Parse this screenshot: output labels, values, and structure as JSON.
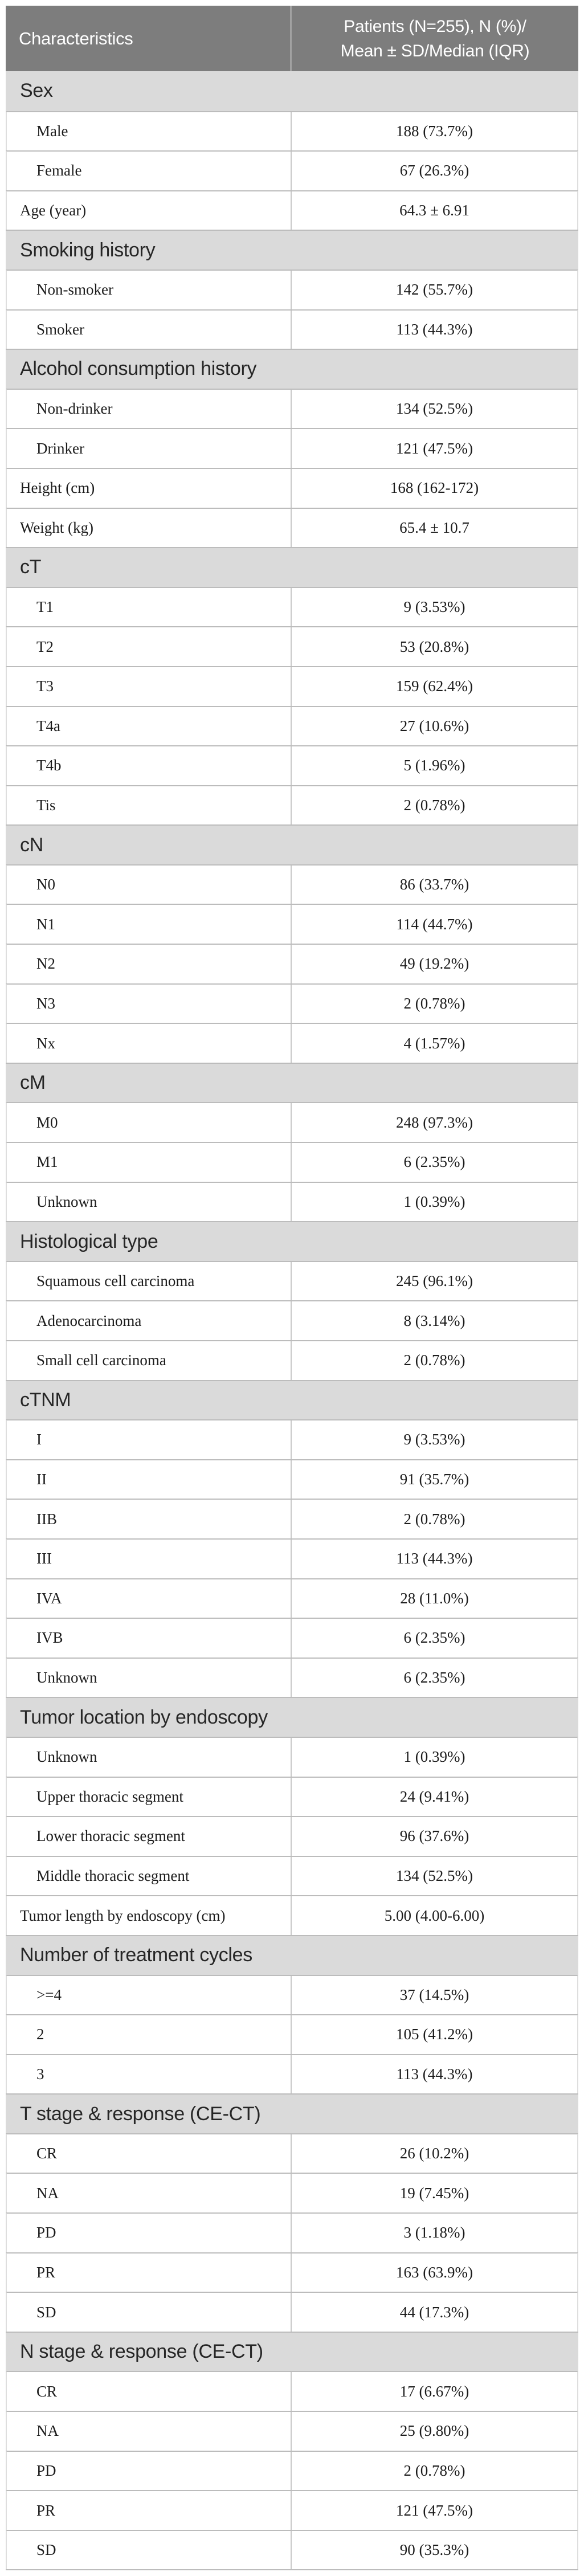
{
  "table": {
    "header": {
      "col1": "Characteristics",
      "col2_line1": "Patients (N=255), N (%)/",
      "col2_line2": "Mean ± SD/Median (IQR)"
    },
    "rows": [
      {
        "type": "section",
        "label": "Sex"
      },
      {
        "type": "item",
        "indent": 1,
        "label": "Male",
        "value": "188 (73.7%)"
      },
      {
        "type": "item",
        "indent": 1,
        "label": "Female",
        "value": "67 (26.3%)"
      },
      {
        "type": "item",
        "indent": 0,
        "label": "Age (year)",
        "value": "64.3 ± 6.91"
      },
      {
        "type": "section",
        "label": "Smoking history"
      },
      {
        "type": "item",
        "indent": 1,
        "label": "Non-smoker",
        "value": "142 (55.7%)"
      },
      {
        "type": "item",
        "indent": 1,
        "label": "Smoker",
        "value": "113 (44.3%)"
      },
      {
        "type": "section",
        "label": "Alcohol consumption history"
      },
      {
        "type": "item",
        "indent": 1,
        "label": "Non-drinker",
        "value": "134 (52.5%)"
      },
      {
        "type": "item",
        "indent": 1,
        "label": "Drinker",
        "value": "121 (47.5%)"
      },
      {
        "type": "item",
        "indent": 0,
        "label": "Height (cm)",
        "value": "168 (162-172)"
      },
      {
        "type": "item",
        "indent": 0,
        "label": "Weight (kg)",
        "value": "65.4 ± 10.7"
      },
      {
        "type": "section",
        "label": "cT"
      },
      {
        "type": "item",
        "indent": 1,
        "label": "T1",
        "value": "9 (3.53%)"
      },
      {
        "type": "item",
        "indent": 1,
        "label": "T2",
        "value": "53 (20.8%)"
      },
      {
        "type": "item",
        "indent": 1,
        "label": "T3",
        "value": "159 (62.4%)"
      },
      {
        "type": "item",
        "indent": 1,
        "label": "T4a",
        "value": "27 (10.6%)"
      },
      {
        "type": "item",
        "indent": 1,
        "label": "T4b",
        "value": "5 (1.96%)"
      },
      {
        "type": "item",
        "indent": 1,
        "label": "Tis",
        "value": "2 (0.78%)"
      },
      {
        "type": "section",
        "label": "cN"
      },
      {
        "type": "item",
        "indent": 1,
        "label": "N0",
        "value": "86 (33.7%)"
      },
      {
        "type": "item",
        "indent": 1,
        "label": "N1",
        "value": "114 (44.7%)"
      },
      {
        "type": "item",
        "indent": 1,
        "label": "N2",
        "value": "49 (19.2%)"
      },
      {
        "type": "item",
        "indent": 1,
        "label": "N3",
        "value": "2 (0.78%)"
      },
      {
        "type": "item",
        "indent": 1,
        "label": "Nx",
        "value": "4 (1.57%)"
      },
      {
        "type": "section",
        "label": "cM"
      },
      {
        "type": "item",
        "indent": 1,
        "label": "M0",
        "value": "248 (97.3%)"
      },
      {
        "type": "item",
        "indent": 1,
        "label": "M1",
        "value": "6 (2.35%)"
      },
      {
        "type": "item",
        "indent": 1,
        "label": "Unknown",
        "value": "1 (0.39%)"
      },
      {
        "type": "section",
        "label": "Histological type"
      },
      {
        "type": "item",
        "indent": 1,
        "label": "Squamous cell carcinoma",
        "value": "245 (96.1%)"
      },
      {
        "type": "item",
        "indent": 1,
        "label": "Adenocarcinoma",
        "value": "8 (3.14%)"
      },
      {
        "type": "item",
        "indent": 1,
        "label": "Small cell carcinoma",
        "value": "2 (0.78%)"
      },
      {
        "type": "section",
        "label": "cTNM"
      },
      {
        "type": "item",
        "indent": 1,
        "label": "I",
        "value": "9 (3.53%)"
      },
      {
        "type": "item",
        "indent": 1,
        "label": "II",
        "value": "91 (35.7%)"
      },
      {
        "type": "item",
        "indent": 1,
        "label": "IIB",
        "value": "2 (0.78%)"
      },
      {
        "type": "item",
        "indent": 1,
        "label": "III",
        "value": "113 (44.3%)"
      },
      {
        "type": "item",
        "indent": 1,
        "label": "IVA",
        "value": "28 (11.0%)"
      },
      {
        "type": "item",
        "indent": 1,
        "label": "IVB",
        "value": "6 (2.35%)"
      },
      {
        "type": "item",
        "indent": 1,
        "label": "Unknown",
        "value": "6 (2.35%)"
      },
      {
        "type": "section",
        "label": "Tumor location by endoscopy"
      },
      {
        "type": "item",
        "indent": 1,
        "label": "Unknown",
        "value": "1 (0.39%)"
      },
      {
        "type": "item",
        "indent": 1,
        "label": "Upper thoracic segment",
        "value": "24 (9.41%)"
      },
      {
        "type": "item",
        "indent": 1,
        "label": "Lower thoracic segment",
        "value": "96 (37.6%)"
      },
      {
        "type": "item",
        "indent": 1,
        "label": "Middle thoracic segment",
        "value": "134 (52.5%)"
      },
      {
        "type": "item",
        "indent": 0,
        "label": "Tumor length by endoscopy (cm)",
        "value": "5.00 (4.00-6.00)"
      },
      {
        "type": "section",
        "label": "Number of treatment cycles"
      },
      {
        "type": "item",
        "indent": 1,
        "label": ">=4",
        "value": "37 (14.5%)"
      },
      {
        "type": "item",
        "indent": 1,
        "label": "2",
        "value": "105 (41.2%)"
      },
      {
        "type": "item",
        "indent": 1,
        "label": "3",
        "value": "113 (44.3%)"
      },
      {
        "type": "section",
        "label": "T stage & response (CE-CT)"
      },
      {
        "type": "item",
        "indent": 1,
        "label": "CR",
        "value": "26 (10.2%)"
      },
      {
        "type": "item",
        "indent": 1,
        "label": "NA",
        "value": "19 (7.45%)"
      },
      {
        "type": "item",
        "indent": 1,
        "label": "PD",
        "value": "3 (1.18%)"
      },
      {
        "type": "item",
        "indent": 1,
        "label": "PR",
        "value": "163 (63.9%)"
      },
      {
        "type": "item",
        "indent": 1,
        "label": "SD",
        "value": "44 (17.3%)"
      },
      {
        "type": "section",
        "label": "N stage & response (CE-CT)"
      },
      {
        "type": "item",
        "indent": 1,
        "label": "CR",
        "value": "17 (6.67%)"
      },
      {
        "type": "item",
        "indent": 1,
        "label": "NA",
        "value": "25 (9.80%)"
      },
      {
        "type": "item",
        "indent": 1,
        "label": "PD",
        "value": "2 (0.78%)"
      },
      {
        "type": "item",
        "indent": 1,
        "label": "PR",
        "value": "121 (47.5%)"
      },
      {
        "type": "item",
        "indent": 1,
        "label": "SD",
        "value": "90 (35.3%)"
      }
    ],
    "colors": {
      "header_bg": "#7d7d7d",
      "header_text": "#ffffff",
      "section_bg": "#dadada",
      "row_border": "#bcbcbc",
      "column_divider": "#c8c8c8",
      "body_text": "#1c1c1c"
    }
  }
}
